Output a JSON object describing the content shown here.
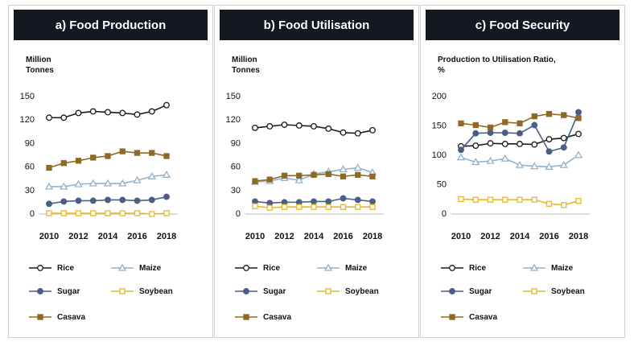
{
  "colors": {
    "rice": "#1a1a1a",
    "maize": "#8fb3cf",
    "sugar": "#4a5f86",
    "soybean": "#e7b924",
    "casava": "#8d6a25",
    "header_bg": "#141820"
  },
  "panels": [
    {
      "title": "a) Food Production",
      "ylabel": "Million\nTonnes",
      "chart_data": {
        "type": "line",
        "x": [
          2010,
          2011,
          2012,
          2013,
          2014,
          2015,
          2016,
          2017,
          2018
        ],
        "xticks": [
          "2010",
          "2012",
          "2014",
          "2016",
          "2018"
        ],
        "yticks": [
          "0",
          "30",
          "60",
          "90",
          "120",
          "150"
        ],
        "ylim": [
          0,
          150
        ],
        "series": [
          {
            "name": "Rice",
            "key": "rice",
            "marker": "circle",
            "values": [
              122,
              122,
              128,
              130,
              129,
              128,
              126,
              130,
              138
            ]
          },
          {
            "name": "Maize",
            "key": "maize",
            "marker": "triangle",
            "values": [
              34,
              34,
              37,
              38,
              38,
              38,
              42,
              47,
              49
            ]
          },
          {
            "name": "Sugar",
            "key": "sugar",
            "marker": "filled-circle",
            "values": [
              12,
              15,
              16,
              16,
              17,
              17,
              16,
              17,
              21
            ]
          },
          {
            "name": "Soybean",
            "key": "soybean",
            "marker": "square",
            "values": [
              0,
              0,
              0,
              0,
              0,
              0,
              0,
              -1,
              0
            ]
          },
          {
            "name": "Casava",
            "key": "casava",
            "marker": "filled-square",
            "values": [
              58,
              64,
              67,
              71,
              73,
              79,
              77,
              77,
              73
            ]
          }
        ]
      }
    },
    {
      "title": "b) Food Utilisation",
      "ylabel": "Million\nTonnes",
      "chart_data": {
        "type": "line",
        "x": [
          2010,
          2011,
          2012,
          2013,
          2014,
          2015,
          2016,
          2017,
          2018
        ],
        "xticks": [
          "2010",
          "2012",
          "2014",
          "2016",
          "2018"
        ],
        "yticks": [
          "0",
          "30",
          "60",
          "90",
          "120",
          "150"
        ],
        "ylim": [
          0,
          150
        ],
        "series": [
          {
            "name": "Rice",
            "key": "rice",
            "marker": "circle",
            "values": [
              109,
              111,
              113,
              112,
              111,
              108,
              103,
              102,
              106
            ]
          },
          {
            "name": "Maize",
            "key": "maize",
            "marker": "triangle",
            "values": [
              40,
              41,
              45,
              42,
              50,
              53,
              56,
              58,
              52
            ]
          },
          {
            "name": "Sugar",
            "key": "sugar",
            "marker": "filled-circle",
            "values": [
              15,
              13,
              14,
              14,
              15,
              15,
              19,
              17,
              15
            ]
          },
          {
            "name": "Soybean",
            "key": "soybean",
            "marker": "square",
            "values": [
              9,
              7,
              8,
              8,
              8,
              8,
              8,
              8,
              8
            ]
          },
          {
            "name": "Casava",
            "key": "casava",
            "marker": "filled-square",
            "values": [
              41,
              43,
              48,
              48,
              49,
              50,
              47,
              49,
              47
            ]
          }
        ]
      }
    },
    {
      "title": "c) Food Security",
      "ylabel": "Production to Utilisation Ratio,\n%",
      "chart_data": {
        "type": "line",
        "x": [
          2010,
          2011,
          2012,
          2013,
          2014,
          2015,
          2016,
          2017,
          2018
        ],
        "xticks": [
          "2010",
          "2012",
          "2014",
          "2016",
          "2018"
        ],
        "yticks": [
          "0",
          "50",
          "100",
          "150",
          "200"
        ],
        "ylim": [
          0,
          200
        ],
        "series": [
          {
            "name": "Rice",
            "key": "rice",
            "marker": "circle",
            "values": [
              114,
              115,
              119,
              118,
              118,
              117,
              126,
              128,
              135
            ]
          },
          {
            "name": "Maize",
            "key": "maize",
            "marker": "triangle",
            "values": [
              95,
              87,
              89,
              93,
              82,
              80,
              79,
              82,
              99
            ]
          },
          {
            "name": "Sugar",
            "key": "sugar",
            "marker": "filled-circle",
            "values": [
              108,
              136,
              137,
              137,
              136,
              150,
              105,
              112,
              172
            ]
          },
          {
            "name": "Soybean",
            "key": "soybean",
            "marker": "square",
            "values": [
              24,
              23,
              23,
              23,
              23,
              23,
              16,
              14,
              21
            ]
          },
          {
            "name": "Casava",
            "key": "casava",
            "marker": "filled-square",
            "values": [
              153,
              150,
              146,
              155,
              153,
              165,
              169,
              167,
              162
            ]
          }
        ]
      }
    }
  ]
}
